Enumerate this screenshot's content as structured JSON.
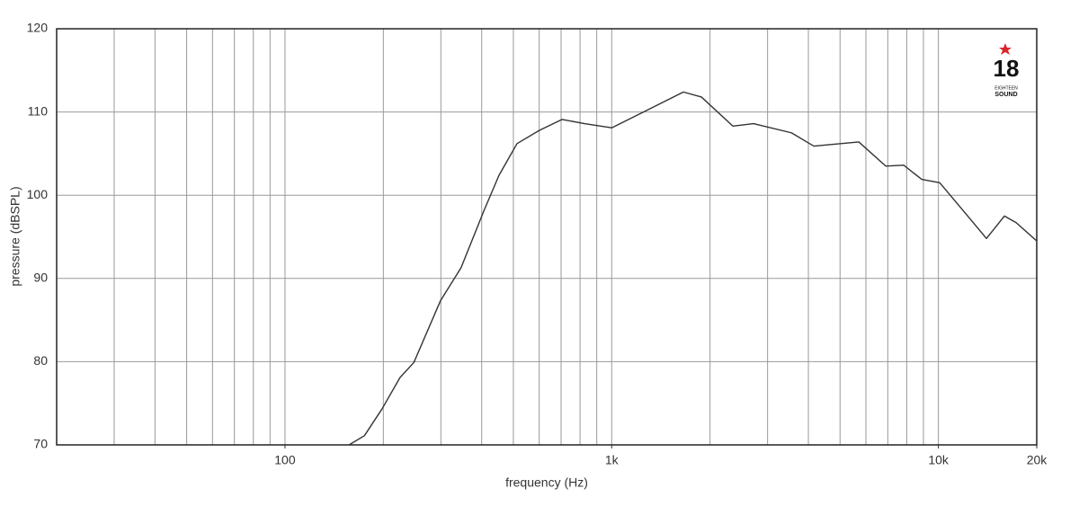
{
  "chart_data": {
    "type": "line",
    "xlabel": "frequency (Hz)",
    "ylabel": "pressure (dBSPL)",
    "xscale": "log",
    "xlim": [
      20,
      20000
    ],
    "ylim": [
      70,
      120
    ],
    "xticks": [
      100,
      {
        "value": 1000,
        "label": "1k"
      },
      {
        "value": 10000,
        "label": "10k"
      },
      {
        "value": 20000,
        "label": "20k"
      }
    ],
    "xgrid": [
      30,
      40,
      50,
      60,
      70,
      80,
      90,
      100,
      200,
      300,
      400,
      500,
      600,
      700,
      800,
      900,
      1000,
      2000,
      3000,
      4000,
      5000,
      6000,
      7000,
      8000,
      9000,
      10000
    ],
    "yticks": [
      70,
      80,
      90,
      100,
      110,
      120
    ],
    "grid": true,
    "color": "#333333",
    "x": [
      157,
      175,
      198,
      225,
      248,
      299,
      346,
      406,
      452,
      513,
      601,
      705,
      826,
      1000,
      1208,
      1658,
      1882,
      2350,
      2718,
      3548,
      4157,
      5706,
      6900,
      7834,
      8893,
      10094,
      12600,
      14030,
      15930,
      17300,
      20000
    ],
    "values": [
      70,
      71.1,
      74.3,
      78.1,
      79.9,
      87.3,
      91.3,
      98.1,
      102.4,
      106.2,
      107.8,
      109.1,
      108.6,
      108.1,
      109.7,
      112.4,
      111.8,
      108.3,
      108.6,
      107.5,
      105.9,
      106.4,
      103.5,
      103.6,
      101.9,
      101.5,
      97.0,
      94.8,
      97.5,
      96.7,
      94.5
    ],
    "logo_number": "18",
    "logo_line1": "EIGHTEEN",
    "logo_line2": "SOUND"
  }
}
